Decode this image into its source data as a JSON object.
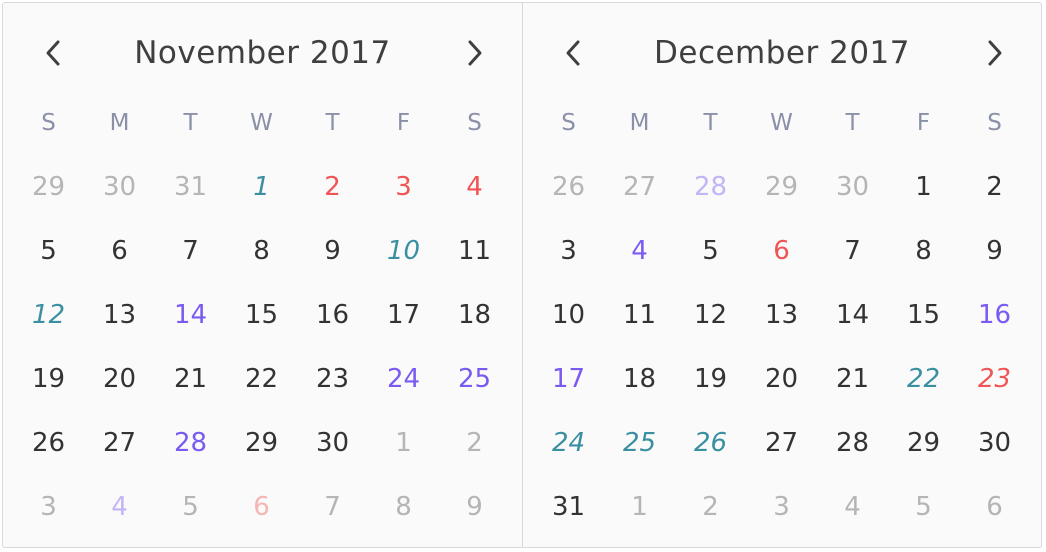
{
  "weekday_labels": [
    "S",
    "M",
    "T",
    "W",
    "T",
    "F",
    "S"
  ],
  "colors": {
    "red": "#f05454",
    "purple": "#7a5af0",
    "teal": "#3a8fa0",
    "muted": "#b5b5b5",
    "text": "#333333",
    "weekday": "#8a90a8"
  },
  "calendars": [
    {
      "title": "November 2017",
      "days": [
        {
          "d": "29",
          "outside": true,
          "color": ""
        },
        {
          "d": "30",
          "outside": true,
          "color": ""
        },
        {
          "d": "31",
          "outside": true,
          "color": ""
        },
        {
          "d": "1",
          "outside": false,
          "color": "teal"
        },
        {
          "d": "2",
          "outside": false,
          "color": "red"
        },
        {
          "d": "3",
          "outside": false,
          "color": "red"
        },
        {
          "d": "4",
          "outside": false,
          "color": "red"
        },
        {
          "d": "5",
          "outside": false,
          "color": ""
        },
        {
          "d": "6",
          "outside": false,
          "color": ""
        },
        {
          "d": "7",
          "outside": false,
          "color": ""
        },
        {
          "d": "8",
          "outside": false,
          "color": ""
        },
        {
          "d": "9",
          "outside": false,
          "color": ""
        },
        {
          "d": "10",
          "outside": false,
          "color": "teal"
        },
        {
          "d": "11",
          "outside": false,
          "color": ""
        },
        {
          "d": "12",
          "outside": false,
          "color": "teal"
        },
        {
          "d": "13",
          "outside": false,
          "color": ""
        },
        {
          "d": "14",
          "outside": false,
          "color": "purple"
        },
        {
          "d": "15",
          "outside": false,
          "color": ""
        },
        {
          "d": "16",
          "outside": false,
          "color": ""
        },
        {
          "d": "17",
          "outside": false,
          "color": ""
        },
        {
          "d": "18",
          "outside": false,
          "color": ""
        },
        {
          "d": "19",
          "outside": false,
          "color": ""
        },
        {
          "d": "20",
          "outside": false,
          "color": ""
        },
        {
          "d": "21",
          "outside": false,
          "color": ""
        },
        {
          "d": "22",
          "outside": false,
          "color": ""
        },
        {
          "d": "23",
          "outside": false,
          "color": ""
        },
        {
          "d": "24",
          "outside": false,
          "color": "purple"
        },
        {
          "d": "25",
          "outside": false,
          "color": "purple"
        },
        {
          "d": "26",
          "outside": false,
          "color": ""
        },
        {
          "d": "27",
          "outside": false,
          "color": ""
        },
        {
          "d": "28",
          "outside": false,
          "color": "purple"
        },
        {
          "d": "29",
          "outside": false,
          "color": ""
        },
        {
          "d": "30",
          "outside": false,
          "color": ""
        },
        {
          "d": "1",
          "outside": true,
          "color": ""
        },
        {
          "d": "2",
          "outside": true,
          "color": ""
        },
        {
          "d": "3",
          "outside": true,
          "color": ""
        },
        {
          "d": "4",
          "outside": true,
          "color": "purple"
        },
        {
          "d": "5",
          "outside": true,
          "color": ""
        },
        {
          "d": "6",
          "outside": true,
          "color": "red"
        },
        {
          "d": "7",
          "outside": true,
          "color": ""
        },
        {
          "d": "8",
          "outside": true,
          "color": ""
        },
        {
          "d": "9",
          "outside": true,
          "color": ""
        }
      ]
    },
    {
      "title": "December 2017",
      "days": [
        {
          "d": "26",
          "outside": true,
          "color": ""
        },
        {
          "d": "27",
          "outside": true,
          "color": ""
        },
        {
          "d": "28",
          "outside": true,
          "color": "purple"
        },
        {
          "d": "29",
          "outside": true,
          "color": ""
        },
        {
          "d": "30",
          "outside": true,
          "color": ""
        },
        {
          "d": "1",
          "outside": false,
          "color": ""
        },
        {
          "d": "2",
          "outside": false,
          "color": ""
        },
        {
          "d": "3",
          "outside": false,
          "color": ""
        },
        {
          "d": "4",
          "outside": false,
          "color": "purple"
        },
        {
          "d": "5",
          "outside": false,
          "color": ""
        },
        {
          "d": "6",
          "outside": false,
          "color": "red"
        },
        {
          "d": "7",
          "outside": false,
          "color": ""
        },
        {
          "d": "8",
          "outside": false,
          "color": ""
        },
        {
          "d": "9",
          "outside": false,
          "color": ""
        },
        {
          "d": "10",
          "outside": false,
          "color": ""
        },
        {
          "d": "11",
          "outside": false,
          "color": ""
        },
        {
          "d": "12",
          "outside": false,
          "color": ""
        },
        {
          "d": "13",
          "outside": false,
          "color": ""
        },
        {
          "d": "14",
          "outside": false,
          "color": ""
        },
        {
          "d": "15",
          "outside": false,
          "color": ""
        },
        {
          "d": "16",
          "outside": false,
          "color": "purple"
        },
        {
          "d": "17",
          "outside": false,
          "color": "purple"
        },
        {
          "d": "18",
          "outside": false,
          "color": ""
        },
        {
          "d": "19",
          "outside": false,
          "color": ""
        },
        {
          "d": "20",
          "outside": false,
          "color": ""
        },
        {
          "d": "21",
          "outside": false,
          "color": ""
        },
        {
          "d": "22",
          "outside": false,
          "color": "teal"
        },
        {
          "d": "23",
          "outside": false,
          "color": "red-italic"
        },
        {
          "d": "24",
          "outside": false,
          "color": "teal"
        },
        {
          "d": "25",
          "outside": false,
          "color": "teal"
        },
        {
          "d": "26",
          "outside": false,
          "color": "teal"
        },
        {
          "d": "27",
          "outside": false,
          "color": ""
        },
        {
          "d": "28",
          "outside": false,
          "color": ""
        },
        {
          "d": "29",
          "outside": false,
          "color": ""
        },
        {
          "d": "30",
          "outside": false,
          "color": ""
        },
        {
          "d": "31",
          "outside": false,
          "color": ""
        },
        {
          "d": "1",
          "outside": true,
          "color": ""
        },
        {
          "d": "2",
          "outside": true,
          "color": ""
        },
        {
          "d": "3",
          "outside": true,
          "color": ""
        },
        {
          "d": "4",
          "outside": true,
          "color": ""
        },
        {
          "d": "5",
          "outside": true,
          "color": ""
        },
        {
          "d": "6",
          "outside": true,
          "color": ""
        }
      ]
    }
  ]
}
